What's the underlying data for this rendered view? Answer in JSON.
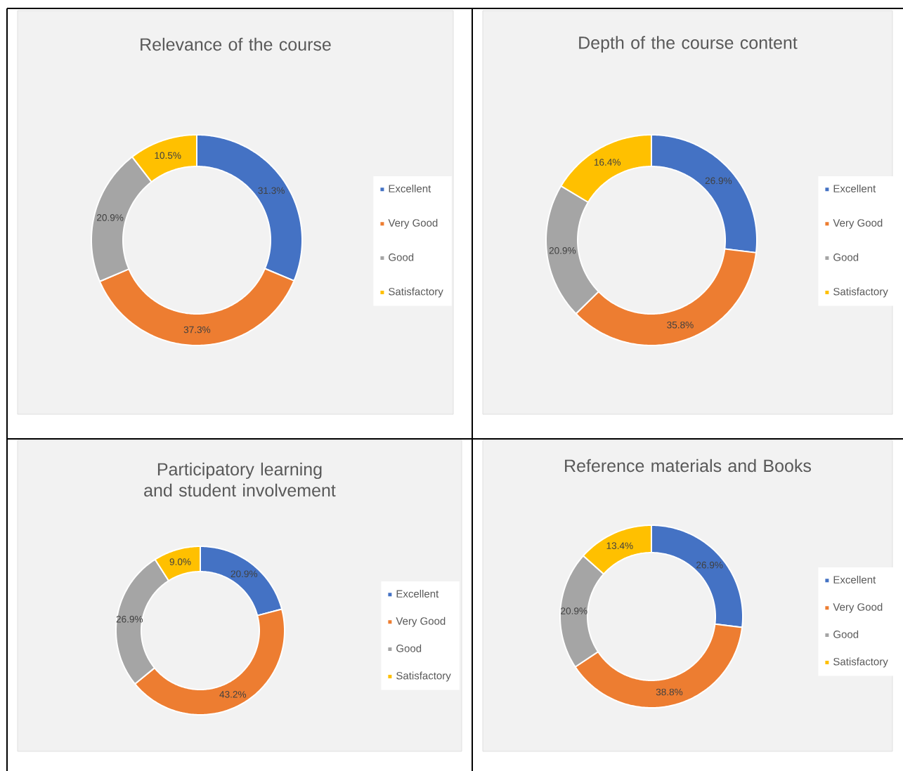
{
  "chart_data": [
    {
      "type": "donut",
      "title": "Relevance of the course",
      "categories": [
        "Excellent",
        "Very Good",
        "Good",
        "Satisfactory"
      ],
      "values": [
        31.3,
        37.3,
        20.9,
        10.5
      ],
      "value_labels": [
        "31.3%",
        "37.3%",
        "20.9%",
        "10.5%"
      ],
      "colors": [
        "#4472c4",
        "#ed7d31",
        "#a5a5a5",
        "#ffc000"
      ],
      "legend": "right"
    },
    {
      "type": "donut",
      "title": "Depth of the course content",
      "categories": [
        "Excellent",
        "Very Good",
        "Good",
        "Satisfactory"
      ],
      "values": [
        26.9,
        35.8,
        20.9,
        16.4
      ],
      "value_labels": [
        "26.9%",
        "35.8%",
        "20.9%",
        "16.4%"
      ],
      "colors": [
        "#4472c4",
        "#ed7d31",
        "#a5a5a5",
        "#ffc000"
      ],
      "legend": "right"
    },
    {
      "type": "donut",
      "title": "Participatory learning and student involvement",
      "categories": [
        "Excellent",
        "Very Good",
        "Good",
        "Satisfactory"
      ],
      "values": [
        20.9,
        43.2,
        26.9,
        9.0
      ],
      "value_labels": [
        "20.9%",
        "43.2%",
        "26.9%",
        "9.0%"
      ],
      "colors": [
        "#4472c4",
        "#ed7d31",
        "#a5a5a5",
        "#ffc000"
      ],
      "legend": "right"
    },
    {
      "type": "donut",
      "title": "Reference materials and Books",
      "categories": [
        "Excellent",
        "Very Good",
        "Good",
        "Satisfactory"
      ],
      "values": [
        26.9,
        38.8,
        20.9,
        13.4
      ],
      "value_labels": [
        "26.9%",
        "38.8%",
        "20.9%",
        "13.4%"
      ],
      "colors": [
        "#4472c4",
        "#ed7d31",
        "#a5a5a5",
        "#ffc000"
      ],
      "legend": "right"
    }
  ]
}
